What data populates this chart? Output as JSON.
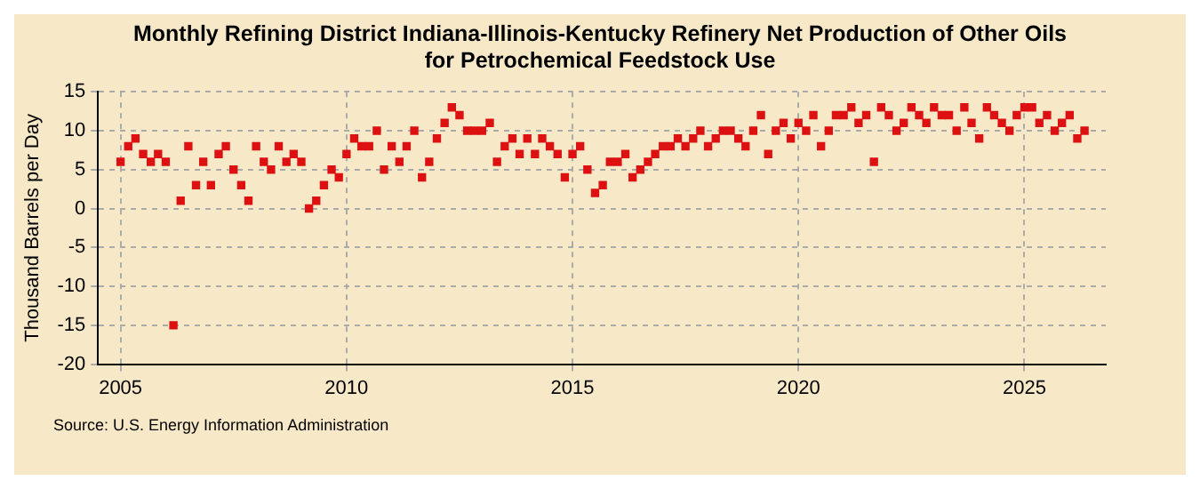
{
  "chart_data": {
    "type": "scatter",
    "title": "Monthly Refining District Indiana-Illinois-Kentucky Refinery Net Production of Other Oils for Petrochemical Feedstock Use",
    "ylabel": "Thousand Barrels per Day",
    "annotations": [
      "Source: U.S. Energy Information Administration"
    ],
    "x": [
      2005.0,
      2005.17,
      2005.33,
      2005.5,
      2005.67,
      2005.83,
      2006.0,
      2006.17,
      2006.33,
      2006.5,
      2006.67,
      2006.83,
      2007.0,
      2007.17,
      2007.33,
      2007.5,
      2007.67,
      2007.83,
      2008.0,
      2008.17,
      2008.33,
      2008.5,
      2008.67,
      2008.83,
      2009.0,
      2009.17,
      2009.33,
      2009.5,
      2009.67,
      2009.83,
      2010.0,
      2010.17,
      2010.33,
      2010.5,
      2010.67,
      2010.83,
      2011.0,
      2011.17,
      2011.33,
      2011.5,
      2011.67,
      2011.83,
      2012.0,
      2012.17,
      2012.33,
      2012.5,
      2012.67,
      2012.83,
      2013.0,
      2013.17,
      2013.33,
      2013.5,
      2013.67,
      2013.83,
      2014.0,
      2014.17,
      2014.33,
      2014.5,
      2014.67,
      2014.83,
      2015.0,
      2015.17,
      2015.33,
      2015.5,
      2015.67,
      2015.83,
      2016.0,
      2016.17,
      2016.33,
      2016.5,
      2016.67,
      2016.83,
      2017.0,
      2017.17,
      2017.33,
      2017.5,
      2017.67,
      2017.83,
      2018.0,
      2018.17,
      2018.33,
      2018.5,
      2018.67,
      2018.83,
      2019.0,
      2019.17,
      2019.33,
      2019.5,
      2019.67,
      2019.83,
      2020.0,
      2020.17,
      2020.33,
      2020.5,
      2020.67,
      2020.83,
      2021.0,
      2021.17,
      2021.33,
      2021.5,
      2021.67,
      2021.83,
      2022.0,
      2022.17,
      2022.33,
      2022.5,
      2022.67,
      2022.83,
      2023.0,
      2023.17,
      2023.33,
      2023.5,
      2023.67,
      2023.83,
      2024.0,
      2024.17,
      2024.33,
      2024.5,
      2024.67,
      2024.83,
      2025.0,
      2025.17,
      2025.33,
      2025.5,
      2025.67,
      2025.83,
      2026.0,
      2026.17,
      2026.33
    ],
    "series": [
      {
        "color": "#dd1111",
        "values": [
          6,
          8,
          9,
          7,
          6,
          7,
          6,
          -15,
          1,
          8,
          3,
          6,
          3,
          7,
          8,
          5,
          3,
          1,
          8,
          6,
          5,
          8,
          6,
          7,
          6,
          0,
          1,
          3,
          5,
          4,
          7,
          9,
          8,
          8,
          10,
          5,
          8,
          6,
          8,
          10,
          4,
          6,
          9,
          11,
          13,
          12,
          10,
          10,
          10,
          11,
          6,
          8,
          9,
          7,
          9,
          7,
          9,
          8,
          7,
          4,
          7,
          8,
          5,
          2,
          3,
          6,
          6,
          7,
          4,
          5,
          6,
          7,
          8,
          8,
          9,
          8,
          9,
          10,
          8,
          9,
          10,
          10,
          9,
          8,
          10,
          12,
          7,
          10,
          11,
          9,
          11,
          10,
          12,
          8,
          10,
          12,
          12,
          13,
          11,
          12,
          6,
          13,
          12,
          10,
          11,
          13,
          12,
          11,
          13,
          12,
          12,
          10,
          13,
          11,
          9,
          13,
          12,
          11,
          10,
          12,
          13,
          13,
          11,
          12,
          10,
          11,
          12,
          9,
          10
        ]
      }
    ],
    "xlim": [
      2004.5,
      2026.8
    ],
    "xticks": [
      2005,
      2010,
      2015,
      2020,
      2025
    ],
    "ylim": [
      -20,
      15
    ],
    "yticks": [
      -20,
      -15,
      -10,
      -5,
      0,
      5,
      10,
      15
    ],
    "grid": true,
    "legend": false,
    "marker": "square"
  }
}
